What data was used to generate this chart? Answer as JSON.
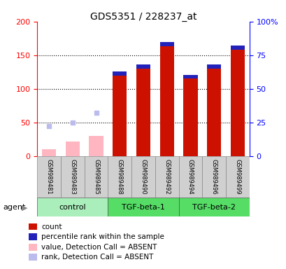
{
  "title": "GDS5351 / 228237_at",
  "samples": [
    "GSM989481",
    "GSM989483",
    "GSM989485",
    "GSM989488",
    "GSM989490",
    "GSM989492",
    "GSM989494",
    "GSM989496",
    "GSM989499"
  ],
  "count_vals": [
    null,
    null,
    null,
    120,
    130,
    163,
    115,
    130,
    158
  ],
  "pct_vals": [
    null,
    null,
    null,
    63,
    62,
    64,
    62,
    62,
    64
  ],
  "abs_val": [
    10,
    22,
    30,
    null,
    null,
    null,
    null,
    null,
    null
  ],
  "abs_rank": [
    22,
    25,
    32,
    null,
    null,
    null,
    null,
    null,
    null
  ],
  "count_color": "#CC1100",
  "percentile_color": "#2222BB",
  "absent_val_color": "#FFB6C1",
  "absent_rank_color": "#BBBBEE",
  "left_ylim": [
    0,
    200
  ],
  "right_ylim": [
    0,
    100
  ],
  "left_yticks": [
    0,
    50,
    100,
    150,
    200
  ],
  "right_yticks": [
    0,
    25,
    50,
    75,
    100
  ],
  "right_yticklabels": [
    "0",
    "25",
    "50",
    "75",
    "100%"
  ],
  "bar_width": 0.6,
  "groups": [
    {
      "name": "control",
      "start": 0,
      "end": 2,
      "color": "#AAEEBB"
    },
    {
      "name": "TGF-beta-1",
      "start": 3,
      "end": 5,
      "color": "#55DD66"
    },
    {
      "name": "TGF-beta-2",
      "start": 6,
      "end": 8,
      "color": "#55DD66"
    }
  ],
  "legend_labels": [
    "count",
    "percentile rank within the sample",
    "value, Detection Call = ABSENT",
    "rank, Detection Call = ABSENT"
  ],
  "legend_colors": [
    "#CC1100",
    "#2222BB",
    "#FFB6C1",
    "#BBBBEE"
  ]
}
